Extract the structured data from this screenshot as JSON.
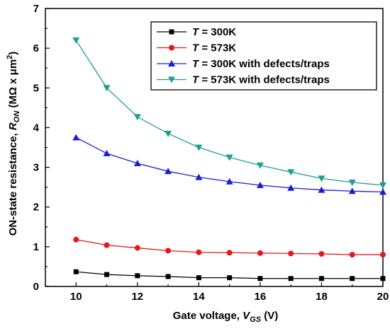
{
  "chart_data": {
    "type": "line",
    "xlabel": {
      "main": "Gate voltage, ",
      "var": "V",
      "sub": "GS",
      "unit": " (V)"
    },
    "ylabel": {
      "main": "ON-state resistance, ",
      "var": "R",
      "sub": "ON",
      "unit_pre": " (MΩ x μm",
      "sup": "2",
      "unit_post": ")"
    },
    "xlim": [
      9,
      20
    ],
    "ylim": [
      0,
      7
    ],
    "xticks": [
      "10",
      "12",
      "14",
      "16",
      "18",
      "20"
    ],
    "yticks": [
      "0",
      "1",
      "2",
      "3",
      "4",
      "5",
      "6",
      "7"
    ],
    "x": [
      10,
      11,
      12,
      13,
      14,
      15,
      16,
      17,
      18,
      19,
      20
    ],
    "legend_position": "top-right",
    "series": [
      {
        "name": "T = 300K",
        "name_var": "T",
        "name_rest": " = 300K",
        "color": "#000000",
        "marker": "square",
        "values": [
          0.37,
          0.3,
          0.27,
          0.25,
          0.22,
          0.22,
          0.2,
          0.2,
          0.2,
          0.2,
          0.2
        ]
      },
      {
        "name": "T = 573K",
        "name_var": "T",
        "name_rest": " = 573K",
        "color": "#e8161c",
        "marker": "circle",
        "values": [
          1.18,
          1.04,
          0.97,
          0.9,
          0.86,
          0.85,
          0.84,
          0.83,
          0.82,
          0.8,
          0.8
        ]
      },
      {
        "name": "T = 300K with defects/traps",
        "name_var": "T",
        "name_rest": " = 300K with defects/traps",
        "color": "#1c1cd6",
        "marker": "triangle-up",
        "values": [
          3.75,
          3.35,
          3.1,
          2.9,
          2.75,
          2.64,
          2.55,
          2.48,
          2.43,
          2.4,
          2.38
        ]
      },
      {
        "name": "T = 573K with defects/traps",
        "name_var": "T",
        "name_rest": " = 573K with defects/traps",
        "color": "#1f9e8e",
        "marker": "triangle-down",
        "values": [
          6.2,
          5.0,
          4.27,
          3.85,
          3.5,
          3.25,
          3.05,
          2.88,
          2.72,
          2.62,
          2.55
        ]
      }
    ]
  }
}
